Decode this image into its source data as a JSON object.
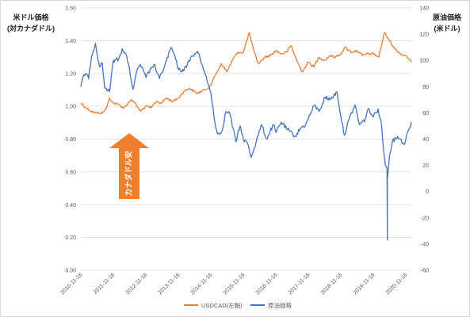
{
  "chart_data": {
    "type": "line",
    "left_axis": {
      "title_lines": [
        "米ドル価格",
        "(対カナダドル)"
      ],
      "range": [
        0,
        1.6
      ],
      "ticks": [
        "0.00",
        "0.20",
        "0.40",
        "0.60",
        "0.80",
        "1.00",
        "1.20",
        "1.40",
        "1.60"
      ]
    },
    "right_axis": {
      "title_lines": [
        "原油価格",
        "(米ドル)"
      ],
      "range": [
        -60,
        140
      ],
      "ticks": [
        "-60",
        "-40",
        "-20",
        "0",
        "20",
        "40",
        "60",
        "80",
        "100",
        "120",
        "140"
      ]
    },
    "x_range": [
      "2010-11-16",
      "2021-01-15"
    ],
    "x_ticks": [
      "2010-11-16",
      "2011-11-16",
      "2012-11-16",
      "2013-11-16",
      "2014-11-16",
      "2015-11-16",
      "2016-11-16",
      "2017-11-16",
      "2018-11-16",
      "2019-11-16",
      "2020-11-16"
    ],
    "grid": true,
    "legend_position": "bottom",
    "series": [
      {
        "name": "USDCAD(左軸)",
        "axis": "left",
        "color": "#ED7D31",
        "points": [
          [
            "2010-11-16",
            1.02
          ],
          [
            "2011-01-15",
            0.99
          ],
          [
            "2011-03-15",
            0.97
          ],
          [
            "2011-05-01",
            0.96
          ],
          [
            "2011-07-20",
            0.96
          ],
          [
            "2011-09-01",
            0.99
          ],
          [
            "2011-10-04",
            1.05
          ],
          [
            "2011-11-16",
            1.02
          ],
          [
            "2012-01-15",
            1.01
          ],
          [
            "2012-03-15",
            0.99
          ],
          [
            "2012-06-01",
            1.04
          ],
          [
            "2012-07-15",
            1.02
          ],
          [
            "2012-09-15",
            0.97
          ],
          [
            "2012-11-16",
            1.0
          ],
          [
            "2013-01-15",
            0.99
          ],
          [
            "2013-03-15",
            1.03
          ],
          [
            "2013-05-15",
            1.02
          ],
          [
            "2013-07-01",
            1.05
          ],
          [
            "2013-09-15",
            1.03
          ],
          [
            "2013-11-16",
            1.05
          ],
          [
            "2014-01-15",
            1.09
          ],
          [
            "2014-03-15",
            1.11
          ],
          [
            "2014-06-15",
            1.08
          ],
          [
            "2014-09-15",
            1.1
          ],
          [
            "2014-11-16",
            1.13
          ],
          [
            "2015-01-15",
            1.2
          ],
          [
            "2015-03-15",
            1.26
          ],
          [
            "2015-05-15",
            1.21
          ],
          [
            "2015-07-15",
            1.28
          ],
          [
            "2015-09-15",
            1.33
          ],
          [
            "2015-11-16",
            1.33
          ],
          [
            "2016-01-20",
            1.45
          ],
          [
            "2016-03-15",
            1.33
          ],
          [
            "2016-05-03",
            1.26
          ],
          [
            "2016-07-15",
            1.3
          ],
          [
            "2016-09-15",
            1.31
          ],
          [
            "2016-11-16",
            1.34
          ],
          [
            "2017-01-15",
            1.32
          ],
          [
            "2017-03-15",
            1.33
          ],
          [
            "2017-05-05",
            1.37
          ],
          [
            "2017-07-15",
            1.27
          ],
          [
            "2017-09-08",
            1.21
          ],
          [
            "2017-11-16",
            1.27
          ],
          [
            "2018-01-15",
            1.24
          ],
          [
            "2018-03-15",
            1.3
          ],
          [
            "2018-05-15",
            1.28
          ],
          [
            "2018-07-15",
            1.31
          ],
          [
            "2018-09-15",
            1.3
          ],
          [
            "2018-11-16",
            1.32
          ],
          [
            "2018-12-31",
            1.36
          ],
          [
            "2019-03-15",
            1.33
          ],
          [
            "2019-05-15",
            1.34
          ],
          [
            "2019-07-15",
            1.31
          ],
          [
            "2019-09-15",
            1.32
          ],
          [
            "2019-11-16",
            1.32
          ],
          [
            "2020-01-15",
            1.3
          ],
          [
            "2020-03-19",
            1.45
          ],
          [
            "2020-05-15",
            1.4
          ],
          [
            "2020-07-15",
            1.35
          ],
          [
            "2020-09-15",
            1.32
          ],
          [
            "2020-11-16",
            1.31
          ],
          [
            "2021-01-15",
            1.27
          ]
        ]
      },
      {
        "name": "原油価格",
        "axis": "right",
        "color": "#4472C4",
        "points": [
          [
            "2010-11-16",
            80
          ],
          [
            "2010-12-20",
            89
          ],
          [
            "2011-01-15",
            90
          ],
          [
            "2011-02-10",
            86
          ],
          [
            "2011-03-15",
            103
          ],
          [
            "2011-04-29",
            113
          ],
          [
            "2011-06-15",
            95
          ],
          [
            "2011-07-15",
            98
          ],
          [
            "2011-08-09",
            80
          ],
          [
            "2011-10-04",
            76
          ],
          [
            "2011-11-16",
            100
          ],
          [
            "2012-01-15",
            101
          ],
          [
            "2012-02-24",
            109
          ],
          [
            "2012-04-15",
            103
          ],
          [
            "2012-06-25",
            78
          ],
          [
            "2012-08-15",
            94
          ],
          [
            "2012-09-15",
            97
          ],
          [
            "2012-11-16",
            87
          ],
          [
            "2013-01-15",
            94
          ],
          [
            "2013-02-15",
            97
          ],
          [
            "2013-04-17",
            86
          ],
          [
            "2013-06-15",
            96
          ],
          [
            "2013-08-28",
            110
          ],
          [
            "2013-10-15",
            101
          ],
          [
            "2013-11-16",
            93
          ],
          [
            "2014-01-15",
            92
          ],
          [
            "2014-03-15",
            100
          ],
          [
            "2014-06-20",
            107
          ],
          [
            "2014-08-15",
            96
          ],
          [
            "2014-10-15",
            82
          ],
          [
            "2014-11-16",
            75
          ],
          [
            "2014-12-31",
            53
          ],
          [
            "2015-01-28",
            44
          ],
          [
            "2015-03-15",
            45
          ],
          [
            "2015-05-05",
            61
          ],
          [
            "2015-06-15",
            60
          ],
          [
            "2015-08-24",
            38
          ],
          [
            "2015-10-10",
            50
          ],
          [
            "2015-11-16",
            40
          ],
          [
            "2015-12-31",
            37
          ],
          [
            "2016-02-11",
            26
          ],
          [
            "2016-04-15",
            40
          ],
          [
            "2016-06-08",
            51
          ],
          [
            "2016-08-02",
            40
          ],
          [
            "2016-10-19",
            51
          ],
          [
            "2016-11-16",
            45
          ],
          [
            "2017-01-15",
            53
          ],
          [
            "2017-03-15",
            48
          ],
          [
            "2017-06-21",
            42
          ],
          [
            "2017-08-15",
            48
          ],
          [
            "2017-10-15",
            51
          ],
          [
            "2017-11-16",
            56
          ],
          [
            "2018-01-25",
            66
          ],
          [
            "2018-03-15",
            61
          ],
          [
            "2018-05-22",
            72
          ],
          [
            "2018-07-15",
            70
          ],
          [
            "2018-10-03",
            76
          ],
          [
            "2018-11-16",
            57
          ],
          [
            "2018-12-24",
            43
          ],
          [
            "2019-02-15",
            55
          ],
          [
            "2019-04-23",
            66
          ],
          [
            "2019-06-12",
            51
          ],
          [
            "2019-08-15",
            55
          ],
          [
            "2019-09-16",
            63
          ],
          [
            "2019-11-16",
            57
          ],
          [
            "2020-01-08",
            63
          ],
          [
            "2020-02-15",
            51
          ],
          [
            "2020-03-09",
            31
          ],
          [
            "2020-03-30",
            20
          ],
          [
            "2020-04-17",
            18
          ],
          [
            "2020-04-20",
            -37
          ],
          [
            "2020-04-21",
            10
          ],
          [
            "2020-05-15",
            28
          ],
          [
            "2020-06-15",
            38
          ],
          [
            "2020-08-15",
            42
          ],
          [
            "2020-10-30",
            36
          ],
          [
            "2020-11-16",
            41
          ],
          [
            "2020-12-15",
            47
          ],
          [
            "2021-01-15",
            53
          ]
        ]
      }
    ],
    "annotation": {
      "text": "カナダドル安",
      "color": "#F07F2D"
    }
  }
}
